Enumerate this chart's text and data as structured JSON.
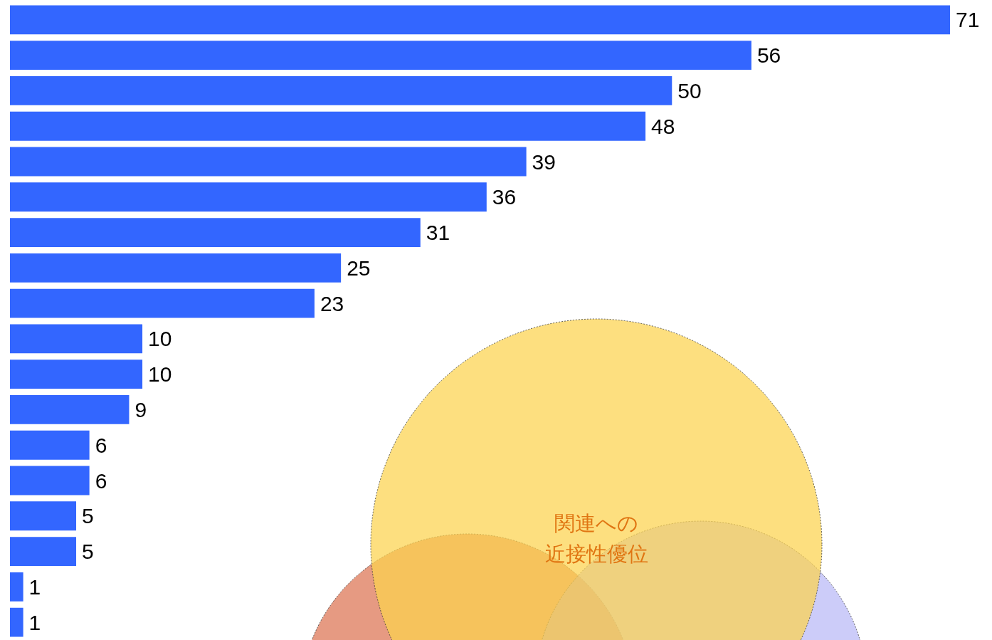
{
  "chart_data": {
    "type": "bar",
    "orientation": "horizontal",
    "categories": [
      null,
      null,
      null,
      null,
      null,
      null,
      null,
      null,
      null,
      null,
      null,
      null,
      null,
      null,
      null,
      null,
      null,
      null
    ],
    "values": [
      71,
      56,
      50,
      48,
      39,
      36,
      31,
      25,
      23,
      10,
      10,
      9,
      6,
      6,
      5,
      5,
      1,
      1
    ],
    "color": "#3366ff",
    "data_labels": true,
    "annotations": [
      "関連への",
      "近接性優位"
    ]
  }
}
